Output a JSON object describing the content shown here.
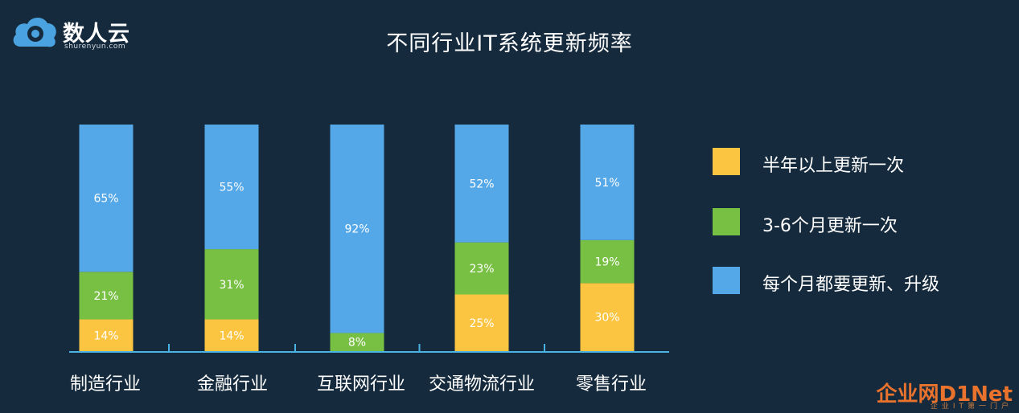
{
  "brand": {
    "name": "数人云",
    "domain": "shurenyun.com"
  },
  "watermark": {
    "main": "企业网D1Net",
    "sub": "企业IT第一门户"
  },
  "colors": {
    "background": "#152a3d",
    "monthly": "#55a8e8",
    "quarterly": "#78c043",
    "half_year": "#fbc441",
    "axis": "#4ab1e3"
  },
  "chart_data": {
    "type": "bar",
    "stacked": true,
    "title": "不同行业IT系统更新频率",
    "categories": [
      "制造行业",
      "金融行业",
      "互联网行业",
      "交通物流行业",
      "零售行业"
    ],
    "series": [
      {
        "name": "半年以上更新一次",
        "color": "#fbc441",
        "values": [
          14,
          14,
          0,
          25,
          30
        ]
      },
      {
        "name": "3-6个月更新一次",
        "color": "#78c043",
        "values": [
          21,
          31,
          8,
          23,
          19
        ]
      },
      {
        "name": "每个月都要更新、升级",
        "color": "#55a8e8",
        "values": [
          65,
          55,
          92,
          52,
          51
        ]
      }
    ],
    "legend": [
      "半年以上更新一次",
      "3-6个月更新一次",
      "每个月都要更新、升级"
    ],
    "legend_position": "right",
    "ylim": [
      0,
      100
    ],
    "grid": false,
    "value_unit": "%"
  }
}
